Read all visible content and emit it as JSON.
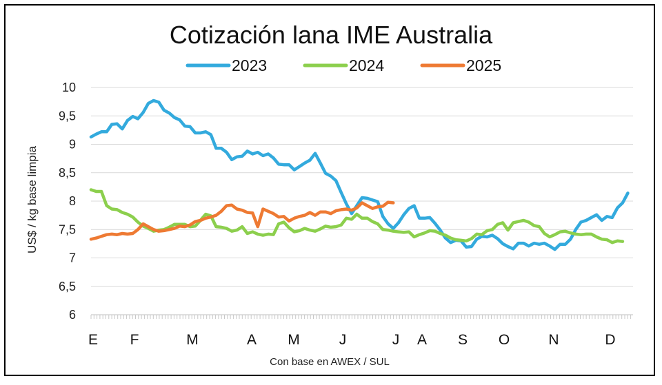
{
  "chart_data": {
    "type": "line",
    "title": "Cotización lana IME Australia",
    "ylabel": "US$ / kg base limpia",
    "xlabel": "Con base en AWEX / SUL",
    "ylim": [
      6,
      10
    ],
    "yticks": [
      "10",
      "9,5",
      "9",
      "8,5",
      "8",
      "7,5",
      "7",
      "6,5",
      "6"
    ],
    "ytick_values": [
      10,
      9.5,
      9,
      8.5,
      8,
      7.5,
      7,
      6.5,
      6
    ],
    "months": [
      "E",
      "F",
      "M",
      "A",
      "M",
      "J",
      "J",
      "A",
      "S",
      "O",
      "N",
      "D"
    ],
    "legend_position": "top-center",
    "grid": true,
    "x_unit": "week",
    "xlim": [
      0,
      52
    ],
    "series": [
      {
        "name": "2023",
        "color": "#33aadd",
        "points": [
          [
            0,
            9.13
          ],
          [
            0.5,
            9.18
          ],
          [
            1,
            9.22
          ],
          [
            1.5,
            9.22
          ],
          [
            2,
            9.35
          ],
          [
            2.5,
            9.36
          ],
          [
            3,
            9.27
          ],
          [
            3.5,
            9.42
          ],
          [
            4,
            9.49
          ],
          [
            4.5,
            9.45
          ],
          [
            5,
            9.56
          ],
          [
            5.5,
            9.72
          ],
          [
            6,
            9.77
          ],
          [
            6.5,
            9.74
          ],
          [
            7,
            9.6
          ],
          [
            7.5,
            9.55
          ],
          [
            8,
            9.47
          ],
          [
            8.5,
            9.43
          ],
          [
            9,
            9.32
          ],
          [
            9.5,
            9.31
          ],
          [
            10,
            9.2
          ],
          [
            10.5,
            9.2
          ],
          [
            11,
            9.22
          ],
          [
            11.5,
            9.17
          ],
          [
            12,
            8.93
          ],
          [
            12.5,
            8.93
          ],
          [
            13,
            8.86
          ],
          [
            13.5,
            8.73
          ],
          [
            14,
            8.78
          ],
          [
            14.5,
            8.79
          ],
          [
            15,
            8.88
          ],
          [
            15.5,
            8.83
          ],
          [
            16,
            8.86
          ],
          [
            16.5,
            8.8
          ],
          [
            17,
            8.83
          ],
          [
            17.5,
            8.76
          ],
          [
            18,
            8.65
          ],
          [
            18.5,
            8.64
          ],
          [
            19,
            8.64
          ],
          [
            19.5,
            8.55
          ],
          [
            20,
            8.61
          ],
          [
            20.5,
            8.67
          ],
          [
            21,
            8.72
          ],
          [
            21.5,
            8.84
          ],
          [
            22,
            8.67
          ],
          [
            22.5,
            8.49
          ],
          [
            23,
            8.44
          ],
          [
            23.5,
            8.36
          ],
          [
            24,
            8.15
          ],
          [
            24.5,
            7.95
          ],
          [
            25,
            7.78
          ],
          [
            25.5,
            7.92
          ],
          [
            26,
            8.06
          ],
          [
            26.5,
            8.05
          ],
          [
            27,
            8.02
          ],
          [
            27.5,
            7.99
          ],
          [
            28,
            7.73
          ],
          [
            28.5,
            7.6
          ],
          [
            29,
            7.52
          ],
          [
            29.5,
            7.62
          ],
          [
            30,
            7.76
          ],
          [
            30.5,
            7.87
          ],
          [
            31,
            7.92
          ],
          [
            31.5,
            7.7
          ],
          [
            32,
            7.7
          ],
          [
            32.5,
            7.71
          ],
          [
            33,
            7.61
          ],
          [
            33.5,
            7.49
          ],
          [
            34,
            7.35
          ],
          [
            34.5,
            7.27
          ],
          [
            35,
            7.31
          ],
          [
            35.5,
            7.3
          ],
          [
            36,
            7.19
          ],
          [
            36.5,
            7.2
          ],
          [
            37,
            7.33
          ],
          [
            37.5,
            7.38
          ],
          [
            38,
            7.37
          ],
          [
            38.5,
            7.4
          ],
          [
            39,
            7.34
          ],
          [
            39.5,
            7.25
          ],
          [
            40,
            7.2
          ],
          [
            40.5,
            7.16
          ],
          [
            41,
            7.26
          ],
          [
            41.5,
            7.26
          ],
          [
            42,
            7.21
          ],
          [
            42.5,
            7.26
          ],
          [
            43,
            7.24
          ],
          [
            43.5,
            7.26
          ],
          [
            44,
            7.21
          ],
          [
            44.5,
            7.15
          ],
          [
            45,
            7.24
          ],
          [
            45.5,
            7.24
          ],
          [
            46,
            7.33
          ],
          [
            46.5,
            7.5
          ],
          [
            47,
            7.63
          ],
          [
            47.5,
            7.66
          ],
          [
            48,
            7.71
          ],
          [
            48.5,
            7.76
          ],
          [
            49,
            7.66
          ],
          [
            49.5,
            7.73
          ],
          [
            50,
            7.71
          ],
          [
            50.5,
            7.88
          ],
          [
            51,
            7.97
          ],
          [
            51.5,
            8.14
          ]
        ]
      },
      {
        "name": "2024",
        "color": "#8ccf4d",
        "points": [
          [
            0,
            8.2
          ],
          [
            0.5,
            8.17
          ],
          [
            1,
            8.17
          ],
          [
            1.5,
            7.92
          ],
          [
            2,
            7.86
          ],
          [
            2.5,
            7.85
          ],
          [
            3,
            7.8
          ],
          [
            3.5,
            7.77
          ],
          [
            4,
            7.72
          ],
          [
            4.5,
            7.63
          ],
          [
            5,
            7.56
          ],
          [
            5.5,
            7.52
          ],
          [
            6,
            7.47
          ],
          [
            6.5,
            7.49
          ],
          [
            7,
            7.5
          ],
          [
            7.5,
            7.54
          ],
          [
            8,
            7.59
          ],
          [
            8.5,
            7.59
          ],
          [
            9,
            7.59
          ],
          [
            9.5,
            7.55
          ],
          [
            10,
            7.56
          ],
          [
            10.5,
            7.66
          ],
          [
            11,
            7.77
          ],
          [
            11.5,
            7.74
          ],
          [
            12,
            7.55
          ],
          [
            12.5,
            7.54
          ],
          [
            13,
            7.52
          ],
          [
            13.5,
            7.47
          ],
          [
            14,
            7.49
          ],
          [
            14.5,
            7.55
          ],
          [
            15,
            7.43
          ],
          [
            15.5,
            7.46
          ],
          [
            16,
            7.42
          ],
          [
            16.5,
            7.4
          ],
          [
            17,
            7.42
          ],
          [
            17.5,
            7.41
          ],
          [
            18,
            7.6
          ],
          [
            18.5,
            7.63
          ],
          [
            19,
            7.53
          ],
          [
            19.5,
            7.46
          ],
          [
            20,
            7.48
          ],
          [
            20.5,
            7.52
          ],
          [
            21,
            7.49
          ],
          [
            21.5,
            7.47
          ],
          [
            22,
            7.51
          ],
          [
            22.5,
            7.56
          ],
          [
            23,
            7.54
          ],
          [
            23.5,
            7.55
          ],
          [
            24,
            7.58
          ],
          [
            24.5,
            7.7
          ],
          [
            25,
            7.68
          ],
          [
            25.5,
            7.77
          ],
          [
            26,
            7.7
          ],
          [
            26.5,
            7.7
          ],
          [
            27,
            7.64
          ],
          [
            27.5,
            7.6
          ],
          [
            28,
            7.5
          ],
          [
            28.5,
            7.49
          ],
          [
            29,
            7.47
          ],
          [
            29.5,
            7.46
          ],
          [
            30,
            7.45
          ],
          [
            30.5,
            7.46
          ],
          [
            31,
            7.37
          ],
          [
            31.5,
            7.41
          ],
          [
            32,
            7.44
          ],
          [
            32.5,
            7.48
          ],
          [
            33,
            7.47
          ],
          [
            33.5,
            7.43
          ],
          [
            34,
            7.4
          ],
          [
            34.5,
            7.35
          ],
          [
            35,
            7.32
          ],
          [
            35.5,
            7.31
          ],
          [
            36,
            7.3
          ],
          [
            36.5,
            7.34
          ],
          [
            37,
            7.42
          ],
          [
            37.5,
            7.41
          ],
          [
            38,
            7.48
          ],
          [
            38.5,
            7.5
          ],
          [
            39,
            7.59
          ],
          [
            39.5,
            7.62
          ],
          [
            40,
            7.49
          ],
          [
            40.5,
            7.62
          ],
          [
            41,
            7.64
          ],
          [
            41.5,
            7.66
          ],
          [
            42,
            7.63
          ],
          [
            42.5,
            7.57
          ],
          [
            43,
            7.55
          ],
          [
            43.5,
            7.43
          ],
          [
            44,
            7.37
          ],
          [
            44.5,
            7.41
          ],
          [
            45,
            7.46
          ],
          [
            45.5,
            7.47
          ],
          [
            46,
            7.44
          ],
          [
            46.5,
            7.42
          ],
          [
            47,
            7.41
          ],
          [
            47.5,
            7.42
          ],
          [
            48,
            7.42
          ],
          [
            48.5,
            7.37
          ],
          [
            49,
            7.33
          ],
          [
            49.5,
            7.32
          ],
          [
            50,
            7.27
          ],
          [
            50.5,
            7.3
          ],
          [
            51,
            7.29
          ]
        ]
      },
      {
        "name": "2025",
        "color": "#ee7a33",
        "points": [
          [
            0,
            7.33
          ],
          [
            0.5,
            7.35
          ],
          [
            1,
            7.38
          ],
          [
            1.5,
            7.41
          ],
          [
            2,
            7.42
          ],
          [
            2.5,
            7.41
          ],
          [
            3,
            7.43
          ],
          [
            3.5,
            7.42
          ],
          [
            4,
            7.43
          ],
          [
            4.5,
            7.5
          ],
          [
            5,
            7.6
          ],
          [
            5.5,
            7.55
          ],
          [
            6,
            7.5
          ],
          [
            6.5,
            7.47
          ],
          [
            7,
            7.48
          ],
          [
            7.5,
            7.5
          ],
          [
            8,
            7.52
          ],
          [
            8.5,
            7.56
          ],
          [
            9,
            7.55
          ],
          [
            9.5,
            7.58
          ],
          [
            10,
            7.64
          ],
          [
            10.5,
            7.66
          ],
          [
            11,
            7.7
          ],
          [
            11.5,
            7.72
          ],
          [
            12,
            7.75
          ],
          [
            12.5,
            7.82
          ],
          [
            13,
            7.92
          ],
          [
            13.5,
            7.93
          ],
          [
            14,
            7.86
          ],
          [
            14.5,
            7.84
          ],
          [
            15,
            7.8
          ],
          [
            15.5,
            7.79
          ],
          [
            16,
            7.55
          ],
          [
            16.5,
            7.86
          ],
          [
            17,
            7.82
          ],
          [
            17.5,
            7.78
          ],
          [
            18,
            7.72
          ],
          [
            18.5,
            7.73
          ],
          [
            19,
            7.65
          ],
          [
            19.5,
            7.7
          ],
          [
            20,
            7.73
          ],
          [
            20.5,
            7.75
          ],
          [
            21,
            7.8
          ],
          [
            21.5,
            7.75
          ],
          [
            22,
            7.81
          ],
          [
            22.5,
            7.81
          ],
          [
            23,
            7.78
          ],
          [
            23.5,
            7.83
          ],
          [
            24,
            7.85
          ],
          [
            24.5,
            7.86
          ],
          [
            25,
            7.84
          ],
          [
            25.5,
            7.88
          ],
          [
            26,
            7.97
          ],
          [
            26.5,
            7.92
          ],
          [
            27,
            7.87
          ],
          [
            27.5,
            7.9
          ],
          [
            28,
            7.91
          ],
          [
            28.5,
            7.98
          ],
          [
            29,
            7.97
          ]
        ]
      }
    ]
  }
}
